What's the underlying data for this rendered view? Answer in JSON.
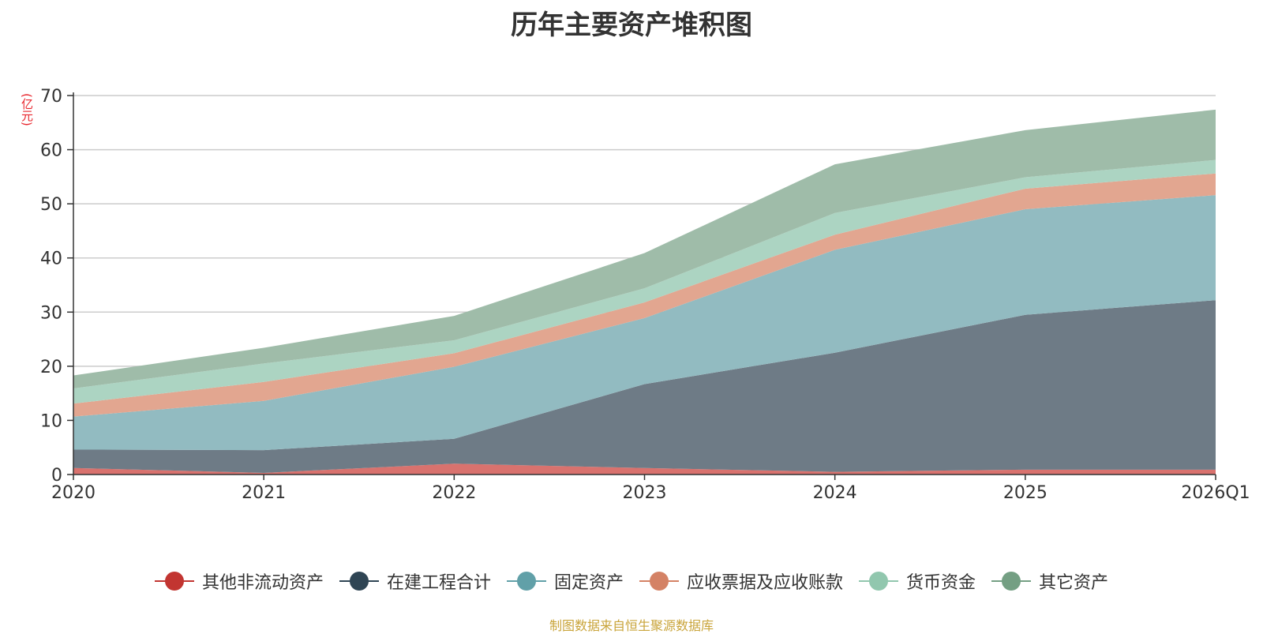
{
  "chart_data": {
    "type": "area",
    "stacked": true,
    "title": "历年主要资产堆积图",
    "ylabel": "(亿元)",
    "xlabel": "",
    "categories": [
      "2020",
      "2021",
      "2022",
      "2023",
      "2024",
      "2025",
      "2026Q1"
    ],
    "ylim": [
      0,
      70
    ],
    "yticks": [
      0,
      10,
      20,
      30,
      40,
      50,
      60,
      70
    ],
    "grid": true,
    "legend_position": "bottom",
    "series": [
      {
        "name": "其他非流动资产",
        "color": "#c23531",
        "fill": "#d9726e",
        "values": [
          1.2,
          0.3,
          2.0,
          1.2,
          0.5,
          0.9,
          0.9
        ]
      },
      {
        "name": "在建工程合计",
        "color": "#2f4554",
        "fill": "#6e7b86",
        "values": [
          3.4,
          4.2,
          4.6,
          15.5,
          22.0,
          28.6,
          31.3
        ]
      },
      {
        "name": "固定资产",
        "color": "#61a0a8",
        "fill": "#92bbc1",
        "values": [
          6.1,
          9.1,
          13.3,
          12.2,
          19.0,
          19.5,
          19.4
        ]
      },
      {
        "name": "应收票据及应收账款",
        "color": "#d48265",
        "fill": "#e2a690",
        "values": [
          2.4,
          3.5,
          2.5,
          2.9,
          2.8,
          3.8,
          4.0
        ]
      },
      {
        "name": "货币资金",
        "color": "#91c7ae",
        "fill": "#acd4c2",
        "values": [
          2.8,
          3.4,
          2.4,
          2.6,
          4.0,
          2.1,
          2.5
        ]
      },
      {
        "name": "其它资产",
        "color": "#749f83",
        "fill": "#9fbca9",
        "values": [
          2.4,
          2.9,
          4.5,
          6.5,
          9.0,
          8.7,
          9.3
        ]
      }
    ]
  },
  "source_text": "制图数据来自恒生聚源数据库"
}
